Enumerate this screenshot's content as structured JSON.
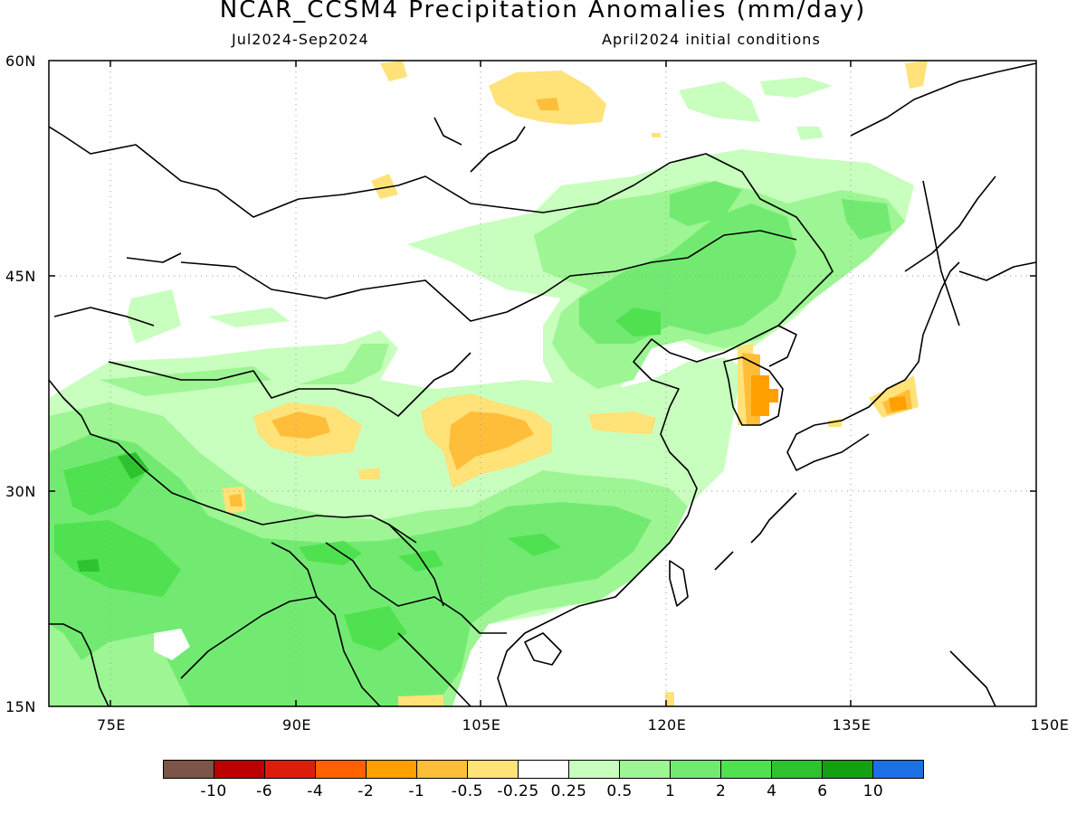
{
  "title": "NCAR_CCSM4 Precipitation Anomalies (mm/day)",
  "period": "Jul2024-Sep2024",
  "init": "April2024 initial conditions",
  "map": {
    "lon_range": [
      70,
      150
    ],
    "lat_range": [
      15,
      60
    ],
    "projection": "lat-lon",
    "gridlines": "dotted"
  },
  "axes": {
    "lat_labels": [
      "60N",
      "45N",
      "30N",
      "15N"
    ],
    "lon_labels": [
      "75E",
      "90E",
      "105E",
      "120E",
      "135E",
      "150E"
    ]
  },
  "colorbar": {
    "colors": [
      "#7a5548",
      "#bd0000",
      "#dd1d0b",
      "#ff6000",
      "#ff9f00",
      "#ffbe3a",
      "#ffe278",
      "#ffffff",
      "#c8ffbe",
      "#9df593",
      "#72ea72",
      "#4fe14f",
      "#2fc22f",
      "#12a112",
      "#1d6fe6"
    ],
    "labels": [
      "-10",
      "-6",
      "-4",
      "-2",
      "-1",
      "-0.5",
      "-0.25",
      "0.25",
      "0.5",
      "1",
      "2",
      "4",
      "6",
      "10"
    ]
  }
}
